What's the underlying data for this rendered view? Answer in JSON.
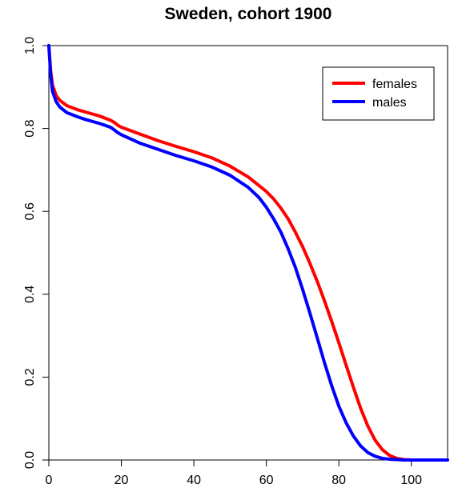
{
  "chart_data": {
    "type": "line",
    "title": "Sweden, cohort 1900",
    "xlabel": "",
    "ylabel": "",
    "xlim": [
      0,
      110
    ],
    "ylim": [
      0,
      1
    ],
    "x_ticks": [
      0,
      20,
      40,
      60,
      80,
      100
    ],
    "y_ticks": [
      0.0,
      0.2,
      0.4,
      0.6,
      0.8,
      1.0
    ],
    "x_tick_labels": [
      "0",
      "20",
      "40",
      "60",
      "80",
      "100"
    ],
    "y_tick_labels": [
      "0.0",
      "0.2",
      "0.4",
      "0.6",
      "0.8",
      "1.0"
    ],
    "grid": false,
    "legend_position": "top-right",
    "series": [
      {
        "name": "females",
        "color": "#ff0000",
        "x": [
          0,
          0.5,
          1,
          2,
          3,
          5,
          8,
          10,
          14,
          17,
          18,
          19,
          20,
          25,
          30,
          35,
          40,
          45,
          50,
          55,
          60,
          62,
          64,
          66,
          68,
          70,
          72,
          74,
          76,
          78,
          80,
          82,
          84,
          86,
          88,
          90,
          92,
          94,
          96,
          98,
          100,
          102,
          105,
          110
        ],
        "values": [
          1.0,
          0.94,
          0.905,
          0.88,
          0.868,
          0.855,
          0.845,
          0.84,
          0.83,
          0.82,
          0.815,
          0.808,
          0.803,
          0.787,
          0.771,
          0.757,
          0.744,
          0.729,
          0.709,
          0.683,
          0.648,
          0.63,
          0.608,
          0.582,
          0.55,
          0.515,
          0.475,
          0.432,
          0.385,
          0.335,
          0.283,
          0.229,
          0.176,
          0.125,
          0.082,
          0.048,
          0.025,
          0.011,
          0.004,
          0.001,
          0.0,
          0.0,
          0.0,
          0.0
        ]
      },
      {
        "name": "males",
        "color": "#0000ff",
        "x": [
          0,
          0.5,
          1,
          2,
          3,
          5,
          8,
          10,
          14,
          17,
          18,
          19,
          20,
          25,
          30,
          35,
          40,
          45,
          50,
          55,
          58,
          60,
          62,
          64,
          66,
          68,
          70,
          72,
          74,
          76,
          78,
          80,
          82,
          84,
          86,
          88,
          90,
          92,
          94,
          96,
          98,
          100,
          105,
          110
        ],
        "values": [
          1.0,
          0.93,
          0.89,
          0.865,
          0.852,
          0.838,
          0.828,
          0.822,
          0.812,
          0.803,
          0.797,
          0.79,
          0.785,
          0.765,
          0.75,
          0.735,
          0.722,
          0.707,
          0.687,
          0.658,
          0.633,
          0.61,
          0.582,
          0.55,
          0.51,
          0.465,
          0.412,
          0.355,
          0.296,
          0.236,
          0.18,
          0.13,
          0.09,
          0.058,
          0.034,
          0.018,
          0.009,
          0.004,
          0.002,
          0.001,
          0.0,
          0.0,
          0.0,
          0.0
        ]
      }
    ]
  }
}
